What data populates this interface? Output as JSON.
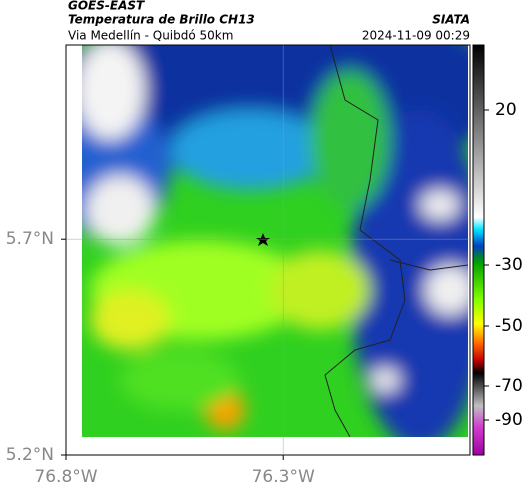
{
  "header": {
    "satellite": "GOES-EAST",
    "product": "Temperatura de Brillo CH13",
    "region": "Via Medellín - Quibdó 50km",
    "source": "SIATA",
    "timestamp": "2024-11-09 00:29"
  },
  "map": {
    "xlim": [
      -76.8,
      -75.87
    ],
    "ylim": [
      5.2,
      6.15
    ],
    "xticks": [
      {
        "value": -76.8,
        "label": "76.8°W"
      },
      {
        "value": -76.3,
        "label": "76.3°W"
      }
    ],
    "yticks": [
      {
        "value": 5.7,
        "label": "5.7°N"
      },
      {
        "value": 5.2,
        "label": "5.2°N"
      }
    ],
    "grid": true
  },
  "colorbar": {
    "ticks": [
      20,
      -30,
      -50,
      -70,
      -90
    ]
  }
}
